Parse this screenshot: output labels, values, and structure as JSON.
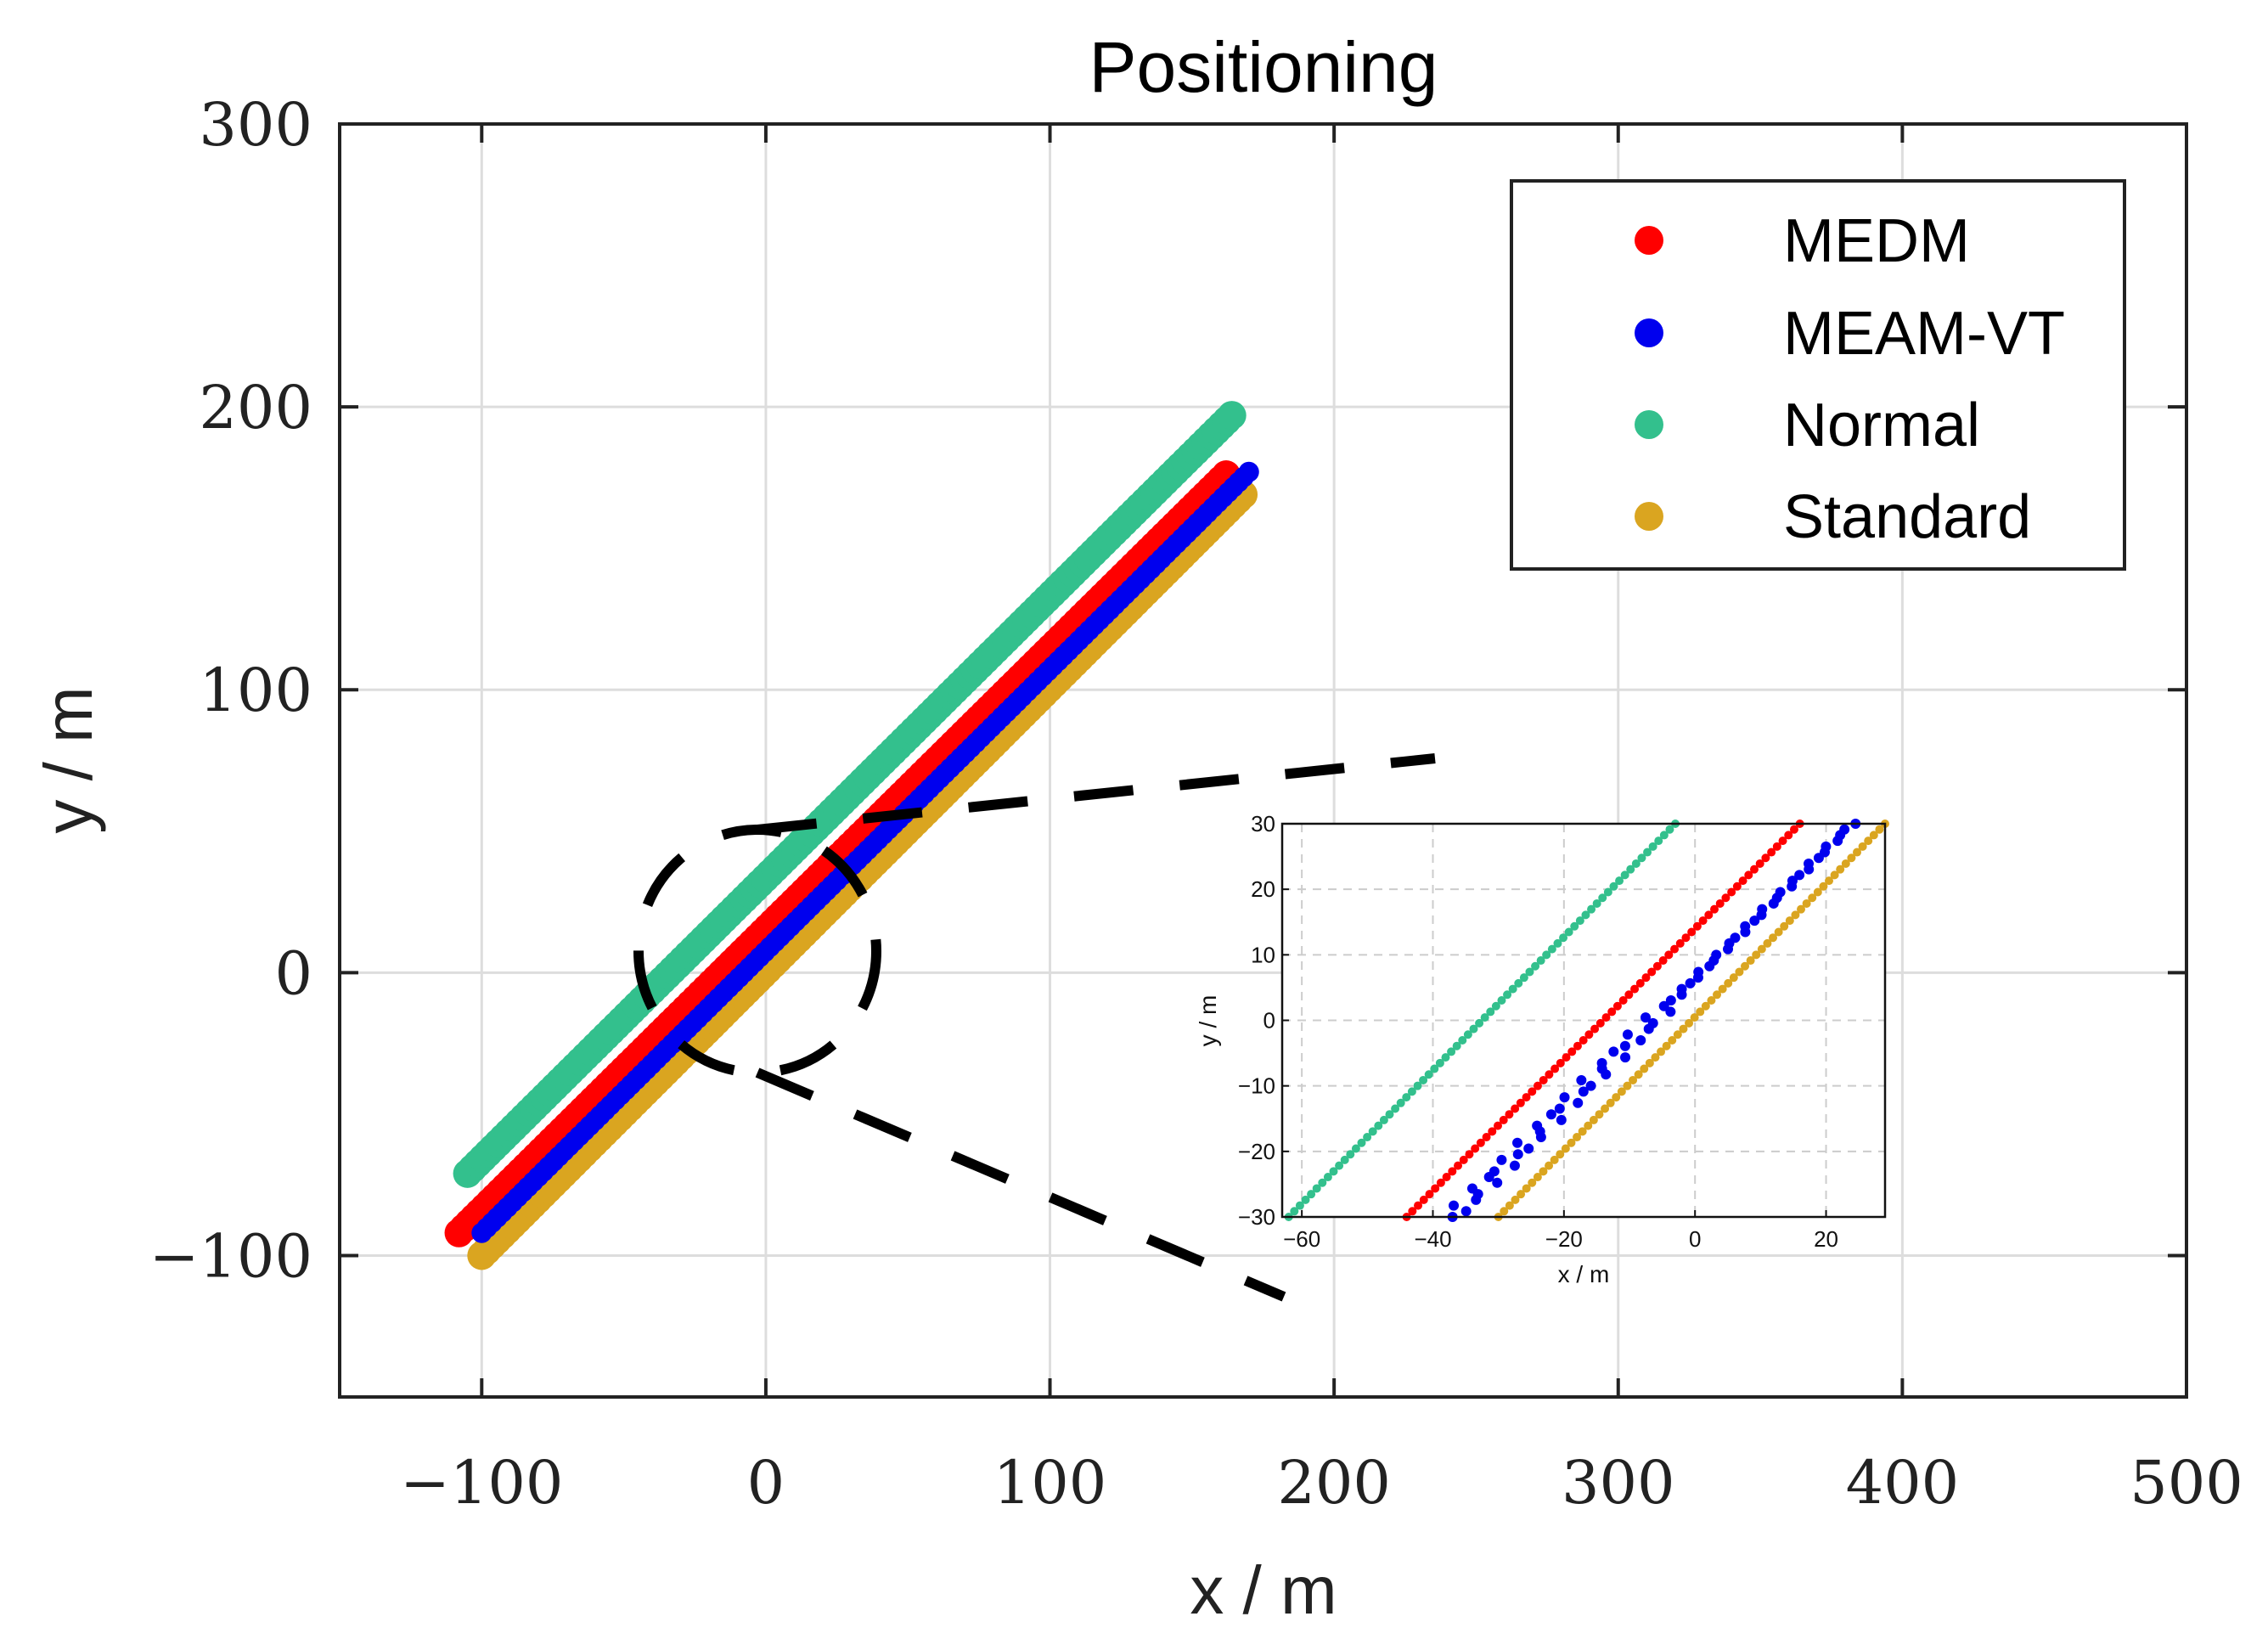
{
  "chart_data": [
    {
      "type": "scatter",
      "title": "Positioning",
      "xlabel": "x / m",
      "ylabel": "y / m",
      "xlim": [
        -150,
        500
      ],
      "ylim": [
        -150,
        300
      ],
      "xticks": [
        -100,
        0,
        100,
        200,
        300,
        400,
        500
      ],
      "yticks": [
        -100,
        0,
        100,
        200,
        300
      ],
      "xtick_labels": [
        "−100",
        "0",
        "100",
        "200",
        "300",
        "400",
        "500"
      ],
      "ytick_labels": [
        "−100",
        "0",
        "100",
        "200",
        "300"
      ],
      "grid": true,
      "legend_position": "top-right",
      "series": [
        {
          "name": "MEDM",
          "color": "#ff0000",
          "x": [
            -108,
            162
          ],
          "y": [
            -92,
            176
          ]
        },
        {
          "name": "MEAM-VT",
          "color": "#0000ee",
          "x": [
            -100,
            170
          ],
          "y": [
            -92,
            177
          ]
        },
        {
          "name": "Normal",
          "color": "#33c08d",
          "x": [
            -105,
            164
          ],
          "y": [
            -71,
            197
          ]
        },
        {
          "name": "Standard",
          "color": "#daa520",
          "x": [
            -100,
            168
          ],
          "y": [
            -100,
            169
          ]
        }
      ]
    },
    {
      "type": "scatter",
      "title": "",
      "xlabel": "x / m",
      "ylabel": "y / m",
      "xlim": [
        -63,
        29
      ],
      "ylim": [
        -30,
        30
      ],
      "xticks": [
        -60,
        -40,
        -20,
        0,
        20
      ],
      "yticks": [
        -30,
        -20,
        -10,
        0,
        10,
        20,
        30
      ],
      "xtick_labels": [
        "−60",
        "−40",
        "−20",
        "0",
        "20"
      ],
      "ytick_labels": [
        "−30",
        "−20",
        "−10",
        "0",
        "10",
        "20",
        "30"
      ],
      "grid": true,
      "series": [
        {
          "name": "MEDM",
          "color": "#ff0000",
          "x": [
            -44,
            16
          ],
          "y": [
            -30,
            30
          ]
        },
        {
          "name": "MEAM-VT",
          "color": "#0000ee",
          "x": [
            -37,
            24
          ],
          "y": [
            -30,
            30
          ]
        },
        {
          "name": "Normal",
          "color": "#33c08d",
          "x": [
            -62,
            -3
          ],
          "y": [
            -30,
            30
          ]
        },
        {
          "name": "Standard",
          "color": "#daa520",
          "x": [
            -30,
            29
          ],
          "y": [
            -30,
            30
          ]
        }
      ]
    }
  ]
}
